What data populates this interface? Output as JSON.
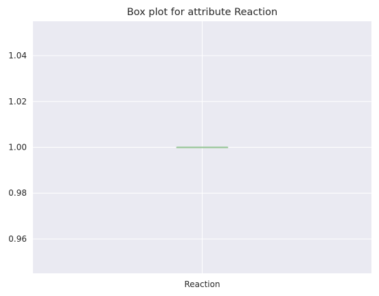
{
  "chart_data": {
    "type": "box",
    "title": "Box plot for attribute Reaction",
    "xlabel": "",
    "ylabel": "",
    "categories": [
      "Reaction"
    ],
    "boxes": [
      {
        "name": "Reaction",
        "min": 1.0,
        "q1": 1.0,
        "median": 1.0,
        "q3": 1.0,
        "max": 1.0
      }
    ],
    "ylim": [
      0.945,
      1.055
    ],
    "yticks": [
      0.96,
      0.98,
      1.0,
      1.02,
      1.04
    ],
    "ytick_labels": [
      "0.96",
      "0.98",
      "1.00",
      "1.02",
      "1.04"
    ],
    "grid": true,
    "colors": {
      "background": "#EAEAF2",
      "grid": "#FFFFFF",
      "box": "#9BC89B",
      "median": "#9BC89B"
    }
  }
}
